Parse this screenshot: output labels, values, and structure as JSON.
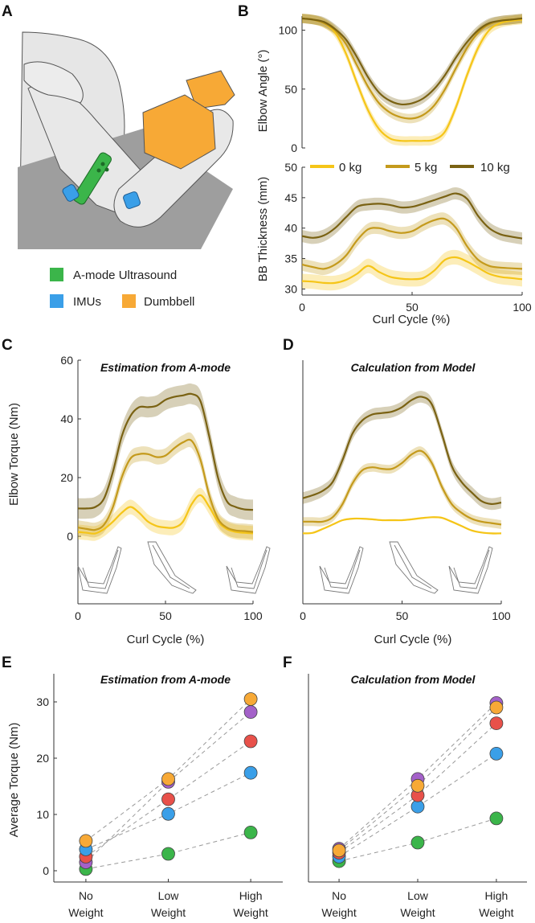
{
  "panel_labels": [
    "A",
    "B",
    "C",
    "D",
    "E",
    "F"
  ],
  "panel_a": {
    "legend": [
      {
        "label": "A-mode Ultrasound",
        "color": "#3bb54a"
      },
      {
        "label": "IMUs",
        "color": "#3a9fe8"
      },
      {
        "label": "Dumbbell",
        "color": "#f7a936"
      }
    ]
  },
  "colors": {
    "w0": "#f5c518",
    "w5": "#c49a1c",
    "w10": "#7a6213",
    "green": "#3bb54a",
    "blue": "#3a9fe8",
    "red": "#e8514a",
    "purple": "#a461c9",
    "orange": "#f7a936"
  },
  "chart_data": [
    {
      "id": "B-top",
      "type": "line",
      "ylabel": "Elbow Angle (°)",
      "xlim": [
        0,
        100
      ],
      "ylim": [
        0,
        112
      ],
      "yticks": [
        0,
        50,
        100
      ],
      "series": [
        {
          "name": "0 kg",
          "x": [
            0,
            5,
            10,
            15,
            20,
            25,
            30,
            35,
            40,
            45,
            50,
            55,
            60,
            65,
            70,
            75,
            80,
            85,
            90,
            95,
            100
          ],
          "y": [
            110,
            109,
            106,
            98,
            80,
            55,
            32,
            16,
            8,
            6,
            6,
            6,
            7,
            14,
            35,
            62,
            85,
            100,
            106,
            108,
            109
          ],
          "band": 4
        },
        {
          "name": "5 kg",
          "x": [
            0,
            5,
            10,
            15,
            20,
            25,
            30,
            35,
            40,
            45,
            50,
            55,
            60,
            65,
            70,
            75,
            80,
            85,
            90,
            95,
            100
          ],
          "y": [
            110,
            109,
            106,
            100,
            88,
            70,
            52,
            38,
            30,
            26,
            25,
            28,
            36,
            50,
            68,
            85,
            98,
            105,
            108,
            109,
            110
          ],
          "band": 4
        },
        {
          "name": "10 kg",
          "x": [
            0,
            5,
            10,
            15,
            20,
            25,
            30,
            35,
            40,
            45,
            50,
            55,
            60,
            65,
            70,
            75,
            80,
            85,
            90,
            95,
            100
          ],
          "y": [
            110,
            109,
            107,
            101,
            92,
            77,
            60,
            47,
            40,
            37,
            38,
            42,
            50,
            62,
            77,
            90,
            100,
            106,
            108,
            109,
            110
          ],
          "band": 4
        }
      ]
    },
    {
      "id": "B-bottom",
      "type": "line",
      "xlabel": "Curl Cycle (%)",
      "ylabel": "BB Thickness (mm)",
      "xlim": [
        0,
        100
      ],
      "ylim": [
        29,
        50
      ],
      "yticks": [
        30,
        35,
        40,
        45,
        50
      ],
      "xticks": [
        0,
        50,
        100
      ],
      "legend": [
        "0 kg",
        "5 kg",
        "10 kg"
      ],
      "series": [
        {
          "name": "0 kg",
          "x": [
            0,
            5,
            10,
            15,
            20,
            25,
            30,
            35,
            40,
            45,
            50,
            55,
            60,
            65,
            70,
            75,
            80,
            85,
            90,
            95,
            100
          ],
          "y": [
            31.3,
            31.2,
            31.0,
            31.0,
            31.5,
            32.5,
            33.8,
            32.8,
            32.0,
            31.7,
            31.6,
            31.8,
            33.0,
            34.8,
            35.2,
            34.5,
            33.5,
            32.5,
            32.0,
            31.8,
            31.6
          ],
          "band": 1.2
        },
        {
          "name": "5 kg",
          "x": [
            0,
            5,
            10,
            15,
            20,
            25,
            30,
            35,
            40,
            45,
            50,
            55,
            60,
            65,
            70,
            75,
            80,
            85,
            90,
            95,
            100
          ],
          "y": [
            34.0,
            33.6,
            33.3,
            34.0,
            35.5,
            38.0,
            39.8,
            40.0,
            39.5,
            39.2,
            39.5,
            40.5,
            41.3,
            41.5,
            40.0,
            37.0,
            34.8,
            33.8,
            33.5,
            33.4,
            33.3
          ],
          "band": 1.0
        },
        {
          "name": "10 kg",
          "x": [
            0,
            5,
            10,
            15,
            20,
            25,
            30,
            35,
            40,
            45,
            50,
            55,
            60,
            65,
            70,
            75,
            80,
            85,
            90,
            95,
            100
          ],
          "y": [
            38.7,
            38.4,
            38.8,
            40.0,
            41.8,
            43.5,
            43.9,
            44.0,
            43.8,
            43.4,
            43.5,
            44.0,
            44.6,
            45.2,
            45.7,
            44.8,
            42.0,
            40.0,
            39.0,
            38.6,
            38.3
          ],
          "band": 1.0
        }
      ]
    },
    {
      "id": "C",
      "type": "line",
      "title": "Estimation from A-mode",
      "xlabel": "Curl Cycle (%)",
      "ylabel": "Elbow Torque (Nm)",
      "xlim": [
        0,
        100
      ],
      "ylim": [
        -23,
        60
      ],
      "yticks": [
        0,
        20,
        40,
        60
      ],
      "xticks": [
        0,
        50,
        100
      ],
      "series": [
        {
          "name": "0 kg",
          "x": [
            0,
            5,
            10,
            15,
            20,
            25,
            30,
            35,
            40,
            45,
            50,
            55,
            60,
            65,
            70,
            75,
            80,
            85,
            90,
            95,
            100
          ],
          "y": [
            1.5,
            1.2,
            1.0,
            2.5,
            5.0,
            8.0,
            10.0,
            8.0,
            5.0,
            3.5,
            3.0,
            3.0,
            5.0,
            11.0,
            14.0,
            10.0,
            5.0,
            2.5,
            1.5,
            1.2,
            1.0
          ],
          "band": 2.5
        },
        {
          "name": "5 kg",
          "x": [
            0,
            5,
            10,
            15,
            20,
            25,
            30,
            35,
            40,
            45,
            50,
            55,
            60,
            65,
            70,
            75,
            80,
            85,
            90,
            95,
            100
          ],
          "y": [
            3.0,
            2.5,
            2.2,
            4.0,
            10.0,
            20.0,
            26.5,
            28.0,
            28.0,
            27.0,
            27.5,
            30.0,
            32.0,
            32.5,
            26.0,
            14.0,
            6.0,
            3.0,
            2.0,
            1.8,
            1.5
          ],
          "band": 2.5
        },
        {
          "name": "10 kg",
          "x": [
            0,
            5,
            10,
            15,
            20,
            25,
            30,
            35,
            40,
            45,
            50,
            55,
            60,
            65,
            70,
            75,
            80,
            85,
            90,
            95,
            100
          ],
          "y": [
            9.5,
            9.5,
            10.0,
            13.0,
            22.0,
            34.0,
            41.0,
            44.0,
            44.0,
            44.5,
            46.5,
            47.5,
            48.0,
            48.5,
            46.0,
            34.0,
            20.0,
            12.0,
            10.0,
            9.2,
            9.0
          ],
          "band": 3.5
        }
      ]
    },
    {
      "id": "D",
      "type": "line",
      "title": "Calculation from Model",
      "xlabel": "Curl Cycle (%)",
      "xlim": [
        0,
        100
      ],
      "ylim": [
        -23,
        60
      ],
      "xticks": [
        0,
        50,
        100
      ],
      "series": [
        {
          "name": "0 kg",
          "x": [
            0,
            5,
            10,
            15,
            20,
            25,
            30,
            35,
            40,
            45,
            50,
            55,
            60,
            65,
            70,
            75,
            80,
            85,
            90,
            95,
            100
          ],
          "y": [
            1.0,
            1.2,
            2.5,
            4.0,
            5.5,
            6.0,
            6.0,
            5.8,
            5.5,
            5.5,
            5.5,
            5.8,
            6.2,
            6.5,
            6.3,
            5.0,
            3.5,
            2.0,
            1.3,
            1.0,
            1.0
          ],
          "band": 0.3
        },
        {
          "name": "5 kg",
          "x": [
            0,
            5,
            10,
            15,
            20,
            25,
            30,
            35,
            40,
            45,
            50,
            55,
            60,
            65,
            70,
            75,
            80,
            85,
            90,
            95,
            100
          ],
          "y": [
            5.0,
            5.0,
            5.0,
            6.5,
            11.0,
            18.0,
            22.5,
            23.5,
            23.0,
            23.0,
            25.0,
            28.0,
            29.0,
            25.0,
            17.0,
            11.0,
            8.0,
            6.0,
            5.0,
            4.5,
            4.0
          ],
          "band": 1.5
        },
        {
          "name": "10 kg",
          "x": [
            0,
            5,
            10,
            15,
            20,
            25,
            30,
            35,
            40,
            45,
            50,
            55,
            60,
            65,
            70,
            75,
            80,
            85,
            90,
            95,
            100
          ],
          "y": [
            13.0,
            14.0,
            15.5,
            18.5,
            26.0,
            35.0,
            39.5,
            41.5,
            42.0,
            42.5,
            44.0,
            46.5,
            47.5,
            45.0,
            35.0,
            24.0,
            18.5,
            15.0,
            12.0,
            11.0,
            11.5
          ],
          "band": 2.0
        }
      ]
    },
    {
      "id": "E",
      "type": "scatter",
      "title": "Estimation from A-mode",
      "ylabel": "Average Torque (Nm)",
      "categories": [
        [
          "No",
          "Weight"
        ],
        [
          "Low",
          "Weight"
        ],
        [
          "High",
          "Weight"
        ]
      ],
      "ylim": [
        -2,
        35
      ],
      "yticks": [
        0,
        10,
        20,
        30
      ],
      "series": [
        {
          "color": "green",
          "values": [
            0.3,
            3.0,
            6.8
          ]
        },
        {
          "color": "purple",
          "values": [
            1.5,
            15.8,
            28.2
          ]
        },
        {
          "color": "red",
          "values": [
            2.5,
            12.7,
            23.0
          ]
        },
        {
          "color": "blue",
          "values": [
            3.8,
            10.1,
            17.4
          ]
        },
        {
          "color": "orange",
          "values": [
            5.3,
            16.3,
            30.5
          ]
        }
      ]
    },
    {
      "id": "F",
      "type": "scatter",
      "title": "Calculation from Model",
      "categories": [
        [
          "No",
          "Weight"
        ],
        [
          "Low",
          "Weight"
        ],
        [
          "High",
          "Weight"
        ]
      ],
      "ylim": [
        -2,
        35
      ],
      "series": [
        {
          "color": "green",
          "values": [
            1.7,
            5.0,
            9.3
          ]
        },
        {
          "color": "blue",
          "values": [
            2.5,
            11.4,
            20.8
          ]
        },
        {
          "color": "red",
          "values": [
            3.2,
            13.4,
            26.2
          ]
        },
        {
          "color": "purple",
          "values": [
            3.9,
            16.3,
            29.8
          ]
        },
        {
          "color": "orange",
          "values": [
            3.6,
            15.1,
            29.0
          ]
        }
      ]
    }
  ]
}
